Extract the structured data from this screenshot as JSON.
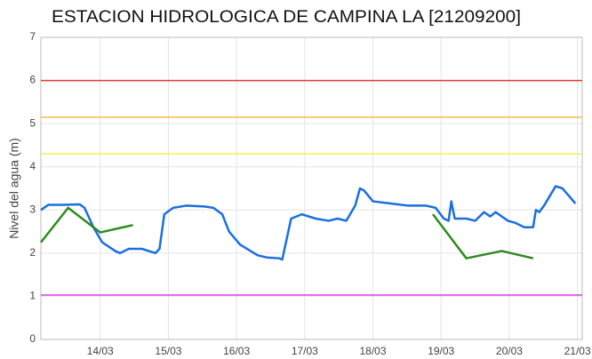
{
  "chart_data": {
    "type": "line",
    "title": "ESTACION HIDROLOGICA DE CAMPINA LA [21209200]",
    "y_label": "Nivel del agua (m)",
    "xlim": [
      13.13,
      21.07
    ],
    "xticks": [
      {
        "value": 14,
        "label": "14/03"
      },
      {
        "value": 15,
        "label": "15/03"
      },
      {
        "value": 16,
        "label": "16/03"
      },
      {
        "value": 17,
        "label": "17/03"
      },
      {
        "value": 18,
        "label": "18/03"
      },
      {
        "value": 19,
        "label": "19/03"
      },
      {
        "value": 20,
        "label": "20/03"
      },
      {
        "value": 21,
        "label": "21/03"
      }
    ],
    "ylim": [
      0,
      7
    ],
    "yticks": [
      0,
      1,
      2,
      3,
      4,
      5,
      6,
      7
    ],
    "grid": true,
    "thresholds": [
      {
        "value": 6,
        "color": "#e53935"
      },
      {
        "value": 5.15,
        "color": "#ffb74d"
      },
      {
        "value": 4.3,
        "color": "#f5f04a"
      },
      {
        "value": 1.03,
        "color": "#e040e0"
      }
    ],
    "series": [
      {
        "color": "#1a6fe0",
        "x": [
          13.13,
          13.24,
          13.44,
          13.7,
          13.77,
          13.9,
          14.03,
          14.22,
          14.29,
          14.42,
          14.61,
          14.81,
          14.87,
          14.94,
          15.07,
          15.26,
          15.53,
          15.66,
          15.79,
          15.89,
          16.05,
          16.31,
          16.44,
          16.63,
          16.67,
          16.8,
          16.96,
          17.16,
          17.35,
          17.48,
          17.61,
          17.74,
          17.81,
          17.87,
          18.0,
          18.26,
          18.52,
          18.78,
          18.92,
          19.04,
          19.11,
          19.15,
          19.2,
          19.37,
          19.5,
          19.63,
          19.72,
          19.8,
          19.98,
          20.09,
          20.22,
          20.35,
          20.39,
          20.44,
          20.51,
          20.68,
          20.78,
          20.97
        ],
        "values": [
          3.0,
          3.12,
          3.12,
          3.13,
          3.05,
          2.6,
          2.25,
          2.05,
          2.0,
          2.1,
          2.1,
          2.0,
          2.1,
          2.9,
          3.05,
          3.1,
          3.08,
          3.05,
          2.9,
          2.5,
          2.2,
          1.95,
          1.9,
          1.88,
          1.85,
          2.8,
          2.9,
          2.8,
          2.75,
          2.8,
          2.75,
          3.1,
          3.5,
          3.45,
          3.2,
          3.15,
          3.1,
          3.1,
          3.05,
          2.8,
          2.75,
          3.2,
          2.8,
          2.8,
          2.75,
          2.95,
          2.85,
          2.95,
          2.75,
          2.7,
          2.6,
          2.6,
          3.0,
          2.95,
          3.1,
          3.55,
          3.5,
          3.15
        ]
      },
      {
        "color": "#2e8b20",
        "x": [
          13.13,
          13.53,
          14.0,
          14.48,
          null,
          18.88,
          19.37,
          19.89,
          20.35
        ],
        "values": [
          2.25,
          3.05,
          2.48,
          2.65,
          null,
          2.9,
          1.88,
          2.05,
          1.88
        ]
      }
    ]
  }
}
